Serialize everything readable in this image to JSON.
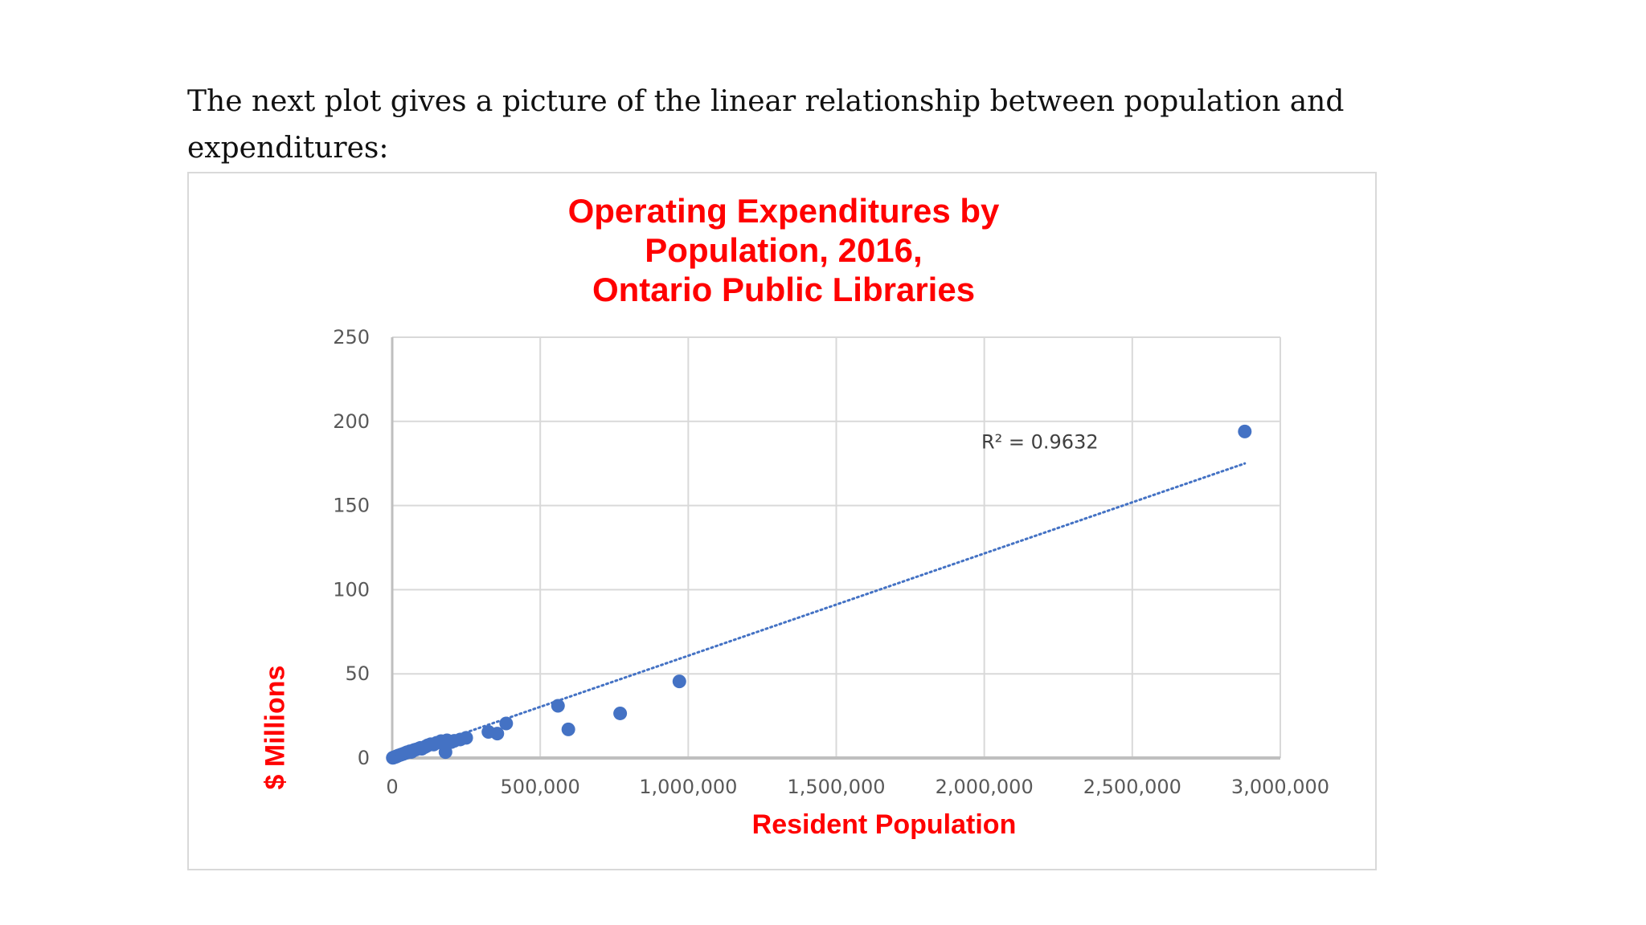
{
  "intro_text": "The next plot gives a picture of the linear relationship between population and expenditures:",
  "chart_data": {
    "type": "scatter",
    "title_lines": [
      "Operating Expenditures by",
      "Population, 2016,",
      "Ontario Public Libraries"
    ],
    "xlabel": "Resident Population",
    "ylabel": "$ Millions",
    "xlim": [
      0,
      3000000
    ],
    "ylim": [
      0,
      250
    ],
    "x_ticks": [
      0,
      500000,
      1000000,
      1500000,
      2000000,
      2500000,
      3000000
    ],
    "x_tick_labels": [
      "0",
      "500,000",
      "1,000,000",
      "1,500,000",
      "2,000,000",
      "2,500,000",
      "3,000,000"
    ],
    "y_ticks": [
      0,
      50,
      100,
      150,
      200,
      250
    ],
    "y_tick_labels": [
      "0",
      "50",
      "100",
      "150",
      "200",
      "250"
    ],
    "grid": true,
    "colors": {
      "title": "#ff0000",
      "points": "#4472c4",
      "trendline": "#4472c4",
      "grid": "#d9d9d9"
    },
    "trendline": {
      "type": "linear",
      "style": "dotted",
      "x": [
        0,
        2880000
      ],
      "y": [
        0,
        175
      ],
      "label": "R² = 0.9632"
    },
    "points": [
      [
        2000,
        0.1
      ],
      [
        5000,
        0.3
      ],
      [
        8000,
        0.5
      ],
      [
        12000,
        0.7
      ],
      [
        15000,
        1.0
      ],
      [
        18000,
        1.2
      ],
      [
        20000,
        1.4
      ],
      [
        25000,
        1.7
      ],
      [
        30000,
        2.0
      ],
      [
        35000,
        2.3
      ],
      [
        40000,
        2.6
      ],
      [
        45000,
        3.0
      ],
      [
        50000,
        3.4
      ],
      [
        55000,
        3.5
      ],
      [
        60000,
        4.0
      ],
      [
        65000,
        3.6
      ],
      [
        70000,
        4.4
      ],
      [
        75000,
        4.8
      ],
      [
        80000,
        5.0
      ],
      [
        90000,
        5.6
      ],
      [
        95000,
        6.0
      ],
      [
        100000,
        5.5
      ],
      [
        110000,
        6.5
      ],
      [
        115000,
        7.0
      ],
      [
        120000,
        7.5
      ],
      [
        130000,
        8.2
      ],
      [
        140000,
        8.0
      ],
      [
        150000,
        9.0
      ],
      [
        165000,
        10.0
      ],
      [
        180000,
        3.5
      ],
      [
        185000,
        10.5
      ],
      [
        200000,
        9.5
      ],
      [
        210000,
        10.2
      ],
      [
        230000,
        11.0
      ],
      [
        250000,
        12.0
      ],
      [
        325000,
        15.5
      ],
      [
        355000,
        14.5
      ],
      [
        385000,
        20.5
      ],
      [
        560000,
        31.0
      ],
      [
        595000,
        17.0
      ],
      [
        770000,
        26.5
      ],
      [
        970000,
        45.5
      ],
      [
        2880000,
        194.0
      ]
    ]
  }
}
